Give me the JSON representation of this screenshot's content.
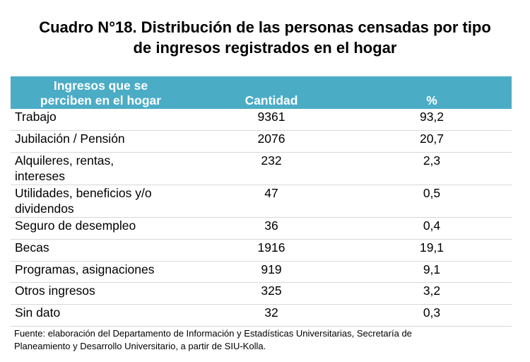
{
  "title": {
    "line1": "Cuadro N°18. Distribución de las personas censadas por tipo",
    "line2": "de ingresos registrados en el hogar"
  },
  "table": {
    "headers": {
      "label_line1": "Ingresos que se",
      "label_line2": "perciben en el hogar",
      "quantity": "Cantidad",
      "percent": "%"
    },
    "rows": [
      {
        "label_line1": "Trabajo",
        "label_line2": "",
        "quantity": "9361",
        "percent": "93,2"
      },
      {
        "label_line1": "Jubilación / Pensión",
        "label_line2": "",
        "quantity": "2076",
        "percent": "20,7"
      },
      {
        "label_line1": "Alquileres, rentas,",
        "label_line2": "intereses",
        "quantity": "232",
        "percent": "2,3"
      },
      {
        "label_line1": "Utilidades, beneficios y/o",
        "label_line2": "dividendos",
        "quantity": "47",
        "percent": "0,5"
      },
      {
        "label_line1": "Seguro de desempleo",
        "label_line2": "",
        "quantity": "36",
        "percent": "0,4"
      },
      {
        "label_line1": "Becas",
        "label_line2": "",
        "quantity": "1916",
        "percent": "19,1"
      },
      {
        "label_line1": "Programas, asignaciones",
        "label_line2": "",
        "quantity": "919",
        "percent": "9,1"
      },
      {
        "label_line1": "Otros ingresos",
        "label_line2": "",
        "quantity": "325",
        "percent": "3,2"
      },
      {
        "label_line1": "Sin dato",
        "label_line2": "",
        "quantity": "32",
        "percent": "0,3"
      }
    ]
  },
  "source": {
    "line1": "Fuente: elaboración del Departamento de Información y Estadísticas Universitarias, Secretaría de",
    "line2": "Planeamiento y Desarrollo Universitario, a partir de  SIU-Kolla."
  },
  "colors": {
    "header_background": "#4bacc6",
    "header_text": "#ffffff",
    "row_divider": "#d8d8d8"
  }
}
